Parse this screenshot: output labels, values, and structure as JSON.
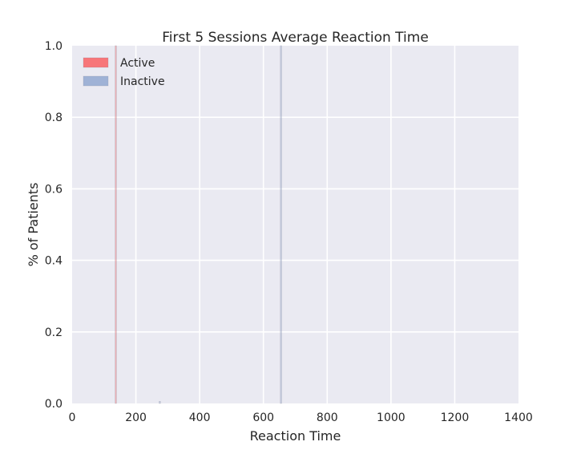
{
  "chart_data": {
    "type": "bar",
    "title": "First 5 Sessions Average Reaction Time",
    "xlabel": "Reaction Time",
    "ylabel": "% of Patients",
    "xlim": [
      0,
      1400
    ],
    "ylim": [
      0,
      1.0
    ],
    "x_ticks": [
      "0",
      "200",
      "400",
      "600",
      "800",
      "1000",
      "1200",
      "1400"
    ],
    "y_ticks": [
      "0.0",
      "0.2",
      "0.4",
      "0.6",
      "0.8",
      "1.0"
    ],
    "grid": true,
    "legend_placement": "top-left",
    "background_color": "#eaeaf2",
    "series": [
      {
        "name": "Active",
        "color": "#f8696b",
        "bars": [
          {
            "x_start": 135,
            "x_end": 139,
            "value": 1.0
          }
        ]
      },
      {
        "name": "Inactive",
        "color": "#92a8d1",
        "bars": [
          {
            "x_start": 273,
            "x_end": 277,
            "value": 0.006
          },
          {
            "x_start": 653,
            "x_end": 657,
            "value": 1.0
          }
        ]
      }
    ]
  }
}
